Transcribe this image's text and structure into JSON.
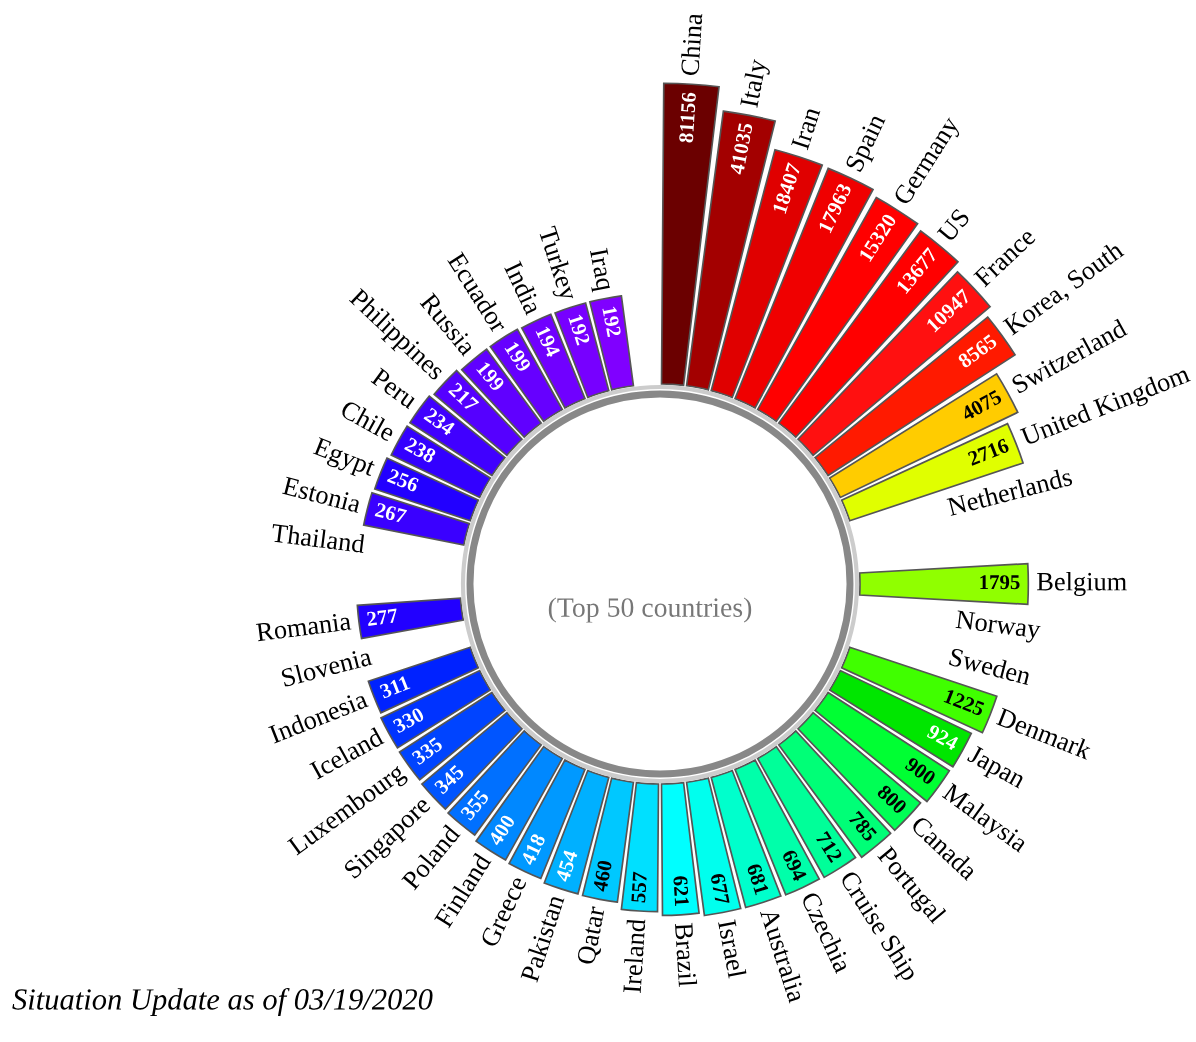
{
  "chart_data": {
    "type": "other",
    "subtitle": "(Top 50 countries)",
    "annotations": [
      "Situation Update as of 03/19/2020"
    ],
    "data_labels": true,
    "categories": [
      "China",
      "Italy",
      "Iran",
      "Spain",
      "Germany",
      "US",
      "France",
      "Korea, South",
      "Switzerland",
      "United Kingdom",
      "Netherlands",
      null,
      "Belgium",
      "Norway",
      "Sweden",
      "Denmark",
      "Japan",
      "Malaysia",
      "Canada",
      "Portugal",
      "Cruise Ship",
      "Czechia",
      "Australia",
      "Israel",
      "Brazil",
      "Ireland",
      "Qatar",
      "Pakistan",
      "Greece",
      "Finland",
      "Poland",
      "Singapore",
      "Luxembourg",
      "Iceland",
      "Indonesia",
      "Slovenia",
      "Romania",
      null,
      "Thailand",
      "Estonia",
      "Egypt",
      "Chile",
      "Peru",
      "Philippines",
      "Russia",
      "Ecuador",
      "India",
      "Turkey",
      "Iraq"
    ],
    "values": [
      81156,
      41035,
      18407,
      17963,
      15320,
      13677,
      10947,
      8565,
      4075,
      2716,
      null,
      null,
      1795,
      null,
      null,
      1225,
      924,
      900,
      800,
      785,
      712,
      694,
      681,
      677,
      621,
      557,
      460,
      454,
      418,
      400,
      355,
      345,
      335,
      330,
      311,
      null,
      277,
      null,
      null,
      267,
      256,
      238,
      234,
      217,
      199,
      199,
      194,
      192,
      192
    ],
    "colors": [
      "#6b0000",
      "#a30000",
      "#e00000",
      "#f00000",
      "#ff0000",
      "#ff0000",
      "#ff1010",
      "#ff1a00",
      "#ffcc00",
      "#e0ff00",
      "#c0ff00",
      "#a8ff00",
      "#90ff00",
      "#70ff00",
      "#55ff00",
      "#40ff00",
      "#00e600",
      "#00ff33",
      "#00ff55",
      "#00ff77",
      "#00ff99",
      "#00ffaa",
      "#00ffcc",
      "#00ffee",
      "#00ffff",
      "#00e0ff",
      "#00c8ff",
      "#00b0ff",
      "#0099ff",
      "#0088ff",
      "#0070ff",
      "#0055ff",
      "#0044ff",
      "#0033ff",
      "#0022ff",
      "#1100ff",
      "#2200ff",
      "#2a00ff",
      "#3300ff",
      "#3a00ff",
      "#2200ff",
      "#3300ff",
      "#4000ff",
      "#5500ff",
      "#6000ff",
      "#6600ff",
      "#7000ff",
      "#7700ff",
      "#8000ff"
    ]
  }
}
